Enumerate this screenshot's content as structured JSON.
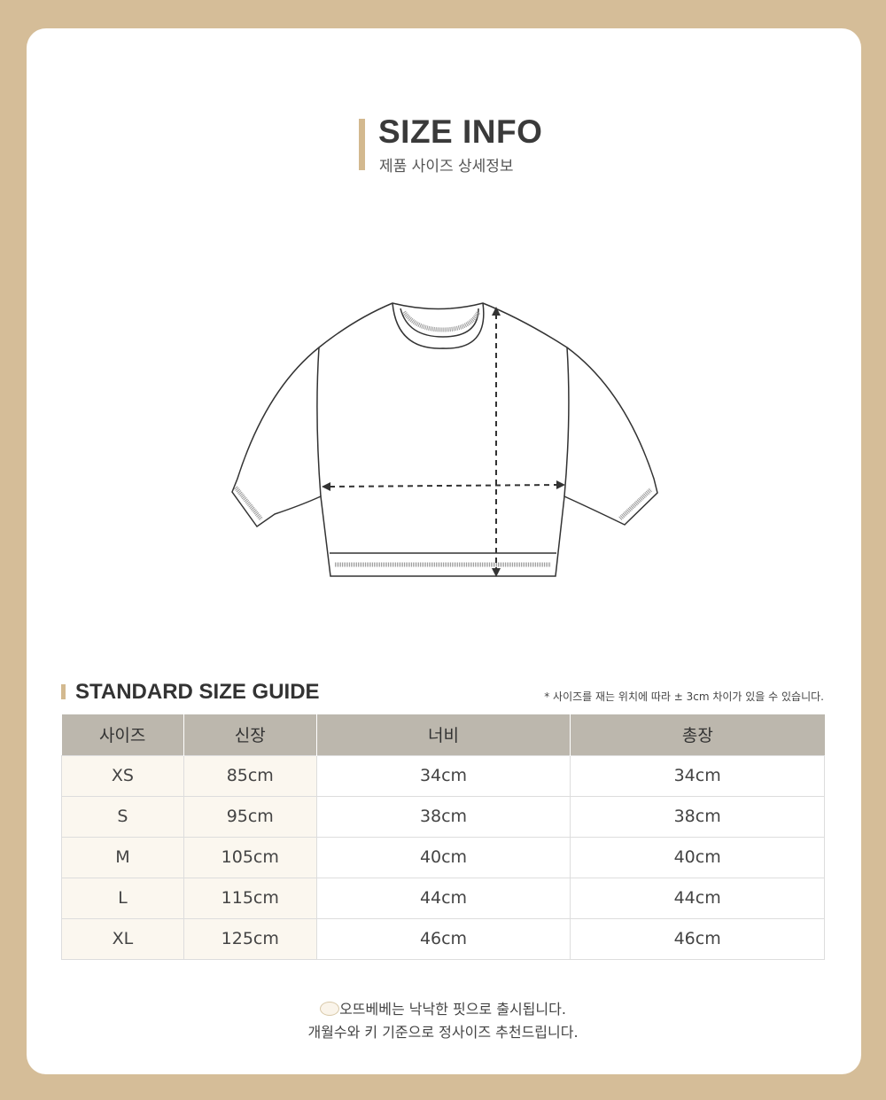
{
  "header": {
    "title": "SIZE INFO",
    "subtitle": "제품 사이즈 상세정보"
  },
  "guide": {
    "title": "STANDARD SIZE GUIDE",
    "note": "* 사이즈를 재는 위치에 따라  ± 3cm 차이가 있을 수 있습니다."
  },
  "table": {
    "headers": [
      "사이즈",
      "신장",
      "너비",
      "총장"
    ],
    "rows": [
      [
        "XS",
        "85cm",
        "34cm",
        "34cm"
      ],
      [
        "S",
        "95cm",
        "38cm",
        "38cm"
      ],
      [
        "M",
        "105cm",
        "40cm",
        "40cm"
      ],
      [
        "L",
        "115cm",
        "44cm",
        "44cm"
      ],
      [
        "XL",
        "125cm",
        "46cm",
        "46cm"
      ]
    ]
  },
  "footer": {
    "line1": "오뜨베베는 낙낙한 핏으로 출시됩니다.",
    "line2": "개월수와 키 기준으로 정사이즈 추천드립니다."
  },
  "colors": {
    "background": "#d5bd98",
    "accent": "#d3b98f",
    "table_header": "#bcb7ad"
  }
}
